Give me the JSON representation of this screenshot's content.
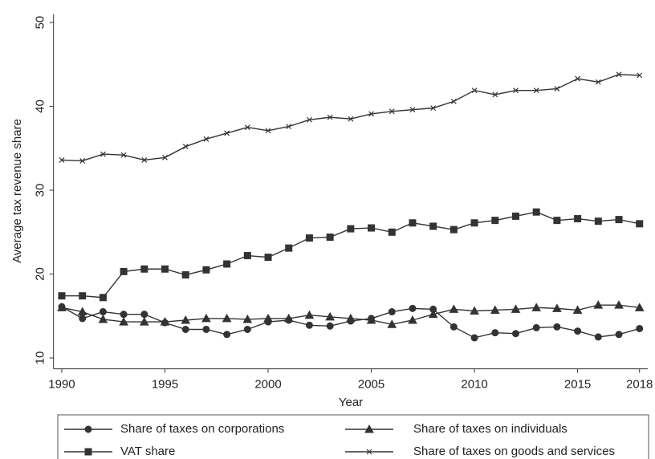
{
  "chart_data": {
    "type": "line",
    "x_label": "Year",
    "y_label": "Average tax revenue share",
    "x": [
      1990,
      1991,
      1992,
      1993,
      1994,
      1995,
      1996,
      1997,
      1998,
      1999,
      2000,
      2001,
      2002,
      2003,
      2004,
      2005,
      2006,
      2007,
      2008,
      2009,
      2010,
      2011,
      2012,
      2013,
      2014,
      2015,
      2016,
      2017,
      2018
    ],
    "series": [
      {
        "name": "Share of taxes on corporations",
        "color": "#333333",
        "marker": "circle",
        "values": [
          16.1,
          14.7,
          15.5,
          15.2,
          15.2,
          14.2,
          13.4,
          13.4,
          12.8,
          13.4,
          14.3,
          14.5,
          13.9,
          13.8,
          14.4,
          14.7,
          15.5,
          15.9,
          15.8,
          13.7,
          12.4,
          13.0,
          12.9,
          13.6,
          13.7,
          13.2,
          12.5,
          12.8,
          13.5
        ]
      },
      {
        "name": "Share of taxes on individuals",
        "color": "#333333",
        "marker": "triangle",
        "values": [
          16.0,
          15.5,
          14.6,
          14.3,
          14.3,
          14.3,
          14.5,
          14.7,
          14.7,
          14.6,
          14.7,
          14.7,
          15.1,
          14.9,
          14.7,
          14.5,
          14.0,
          14.5,
          15.2,
          15.8,
          15.6,
          15.7,
          15.8,
          16.0,
          15.9,
          15.7,
          16.3,
          16.3,
          16.0
        ]
      },
      {
        "name": "VAT share",
        "color": "#333333",
        "marker": "square",
        "values": [
          17.4,
          17.4,
          17.2,
          20.3,
          20.6,
          20.6,
          19.9,
          20.5,
          21.2,
          22.2,
          22.0,
          23.1,
          24.3,
          24.4,
          25.4,
          25.5,
          25.0,
          26.1,
          25.7,
          25.3,
          26.1,
          26.4,
          26.9,
          27.4,
          26.4,
          26.6,
          26.3,
          26.5,
          26.0
        ]
      },
      {
        "name": "Share of taxes on goods and services",
        "color": "#333333",
        "marker": "x",
        "values": [
          33.6,
          33.5,
          34.3,
          34.2,
          33.6,
          33.9,
          35.2,
          36.1,
          36.8,
          37.5,
          37.1,
          37.6,
          38.4,
          38.7,
          38.5,
          39.1,
          39.4,
          39.6,
          39.8,
          40.6,
          41.9,
          41.4,
          41.9,
          41.9,
          42.1,
          43.3,
          42.9,
          43.8,
          43.7
        ]
      }
    ],
    "xlim": [
      1989.6,
      2018.4
    ],
    "xticks": [
      1990,
      1995,
      2000,
      2005,
      2010,
      2015,
      2018
    ],
    "ylim": [
      8.7,
      51
    ],
    "yticks": [
      10,
      20,
      30,
      40,
      50
    ],
    "grid": false,
    "legend": "bottom"
  }
}
